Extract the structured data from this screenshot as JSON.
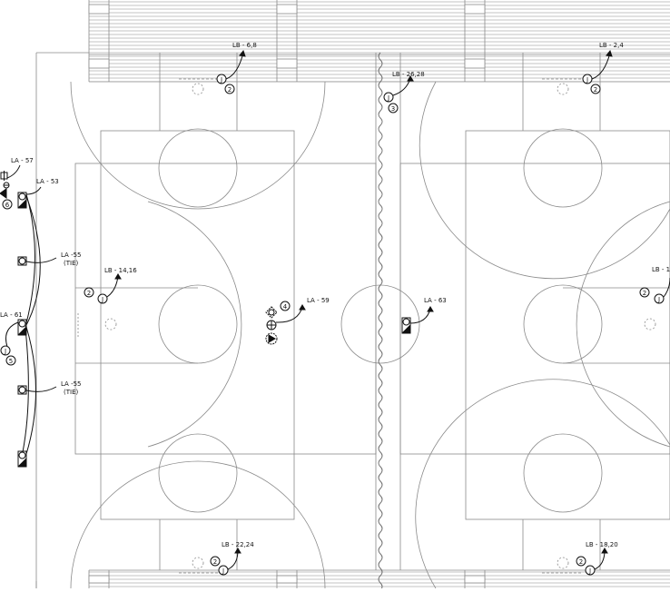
{
  "callouts": [
    {
      "id": "lb-6-8",
      "label": "LB - 6,8"
    },
    {
      "id": "lb-2-4",
      "label": "LB - 2,4"
    },
    {
      "id": "lb-26-28",
      "label": "LB - 26,28"
    },
    {
      "id": "la-57",
      "label": "LA - 57"
    },
    {
      "id": "la-53",
      "label": "LA - 53"
    },
    {
      "id": "la-55-top",
      "label": "LA -55",
      "sub": "(TIE)"
    },
    {
      "id": "lb-14-16",
      "label": "LB - 14,16"
    },
    {
      "id": "la-59",
      "label": "LA - 59"
    },
    {
      "id": "la-63",
      "label": "LA - 63"
    },
    {
      "id": "lb-1-right",
      "label": "LB - 1"
    },
    {
      "id": "la-61",
      "label": "LA - 61"
    },
    {
      "id": "la-55-bottom",
      "label": "LA -55",
      "sub": "(TIE)"
    },
    {
      "id": "lb-22-24",
      "label": "LB - 22,24"
    },
    {
      "id": "lb-18-20",
      "label": "LB - 18,20"
    }
  ],
  "circuit_numbers": {
    "top_left_j": "2",
    "top_right_j": "2",
    "center_top_j": "3",
    "left_side": "6",
    "left_mid_j": "2",
    "center_device": "4",
    "right_mid": "2",
    "left_lower_j": "5",
    "bottom_left_j": "2",
    "bottom_right_j": "2"
  },
  "symbols": {
    "junction": "J"
  },
  "colors": {
    "line": "#8a8a8a",
    "ink": "#111111",
    "background": "#ffffff"
  }
}
